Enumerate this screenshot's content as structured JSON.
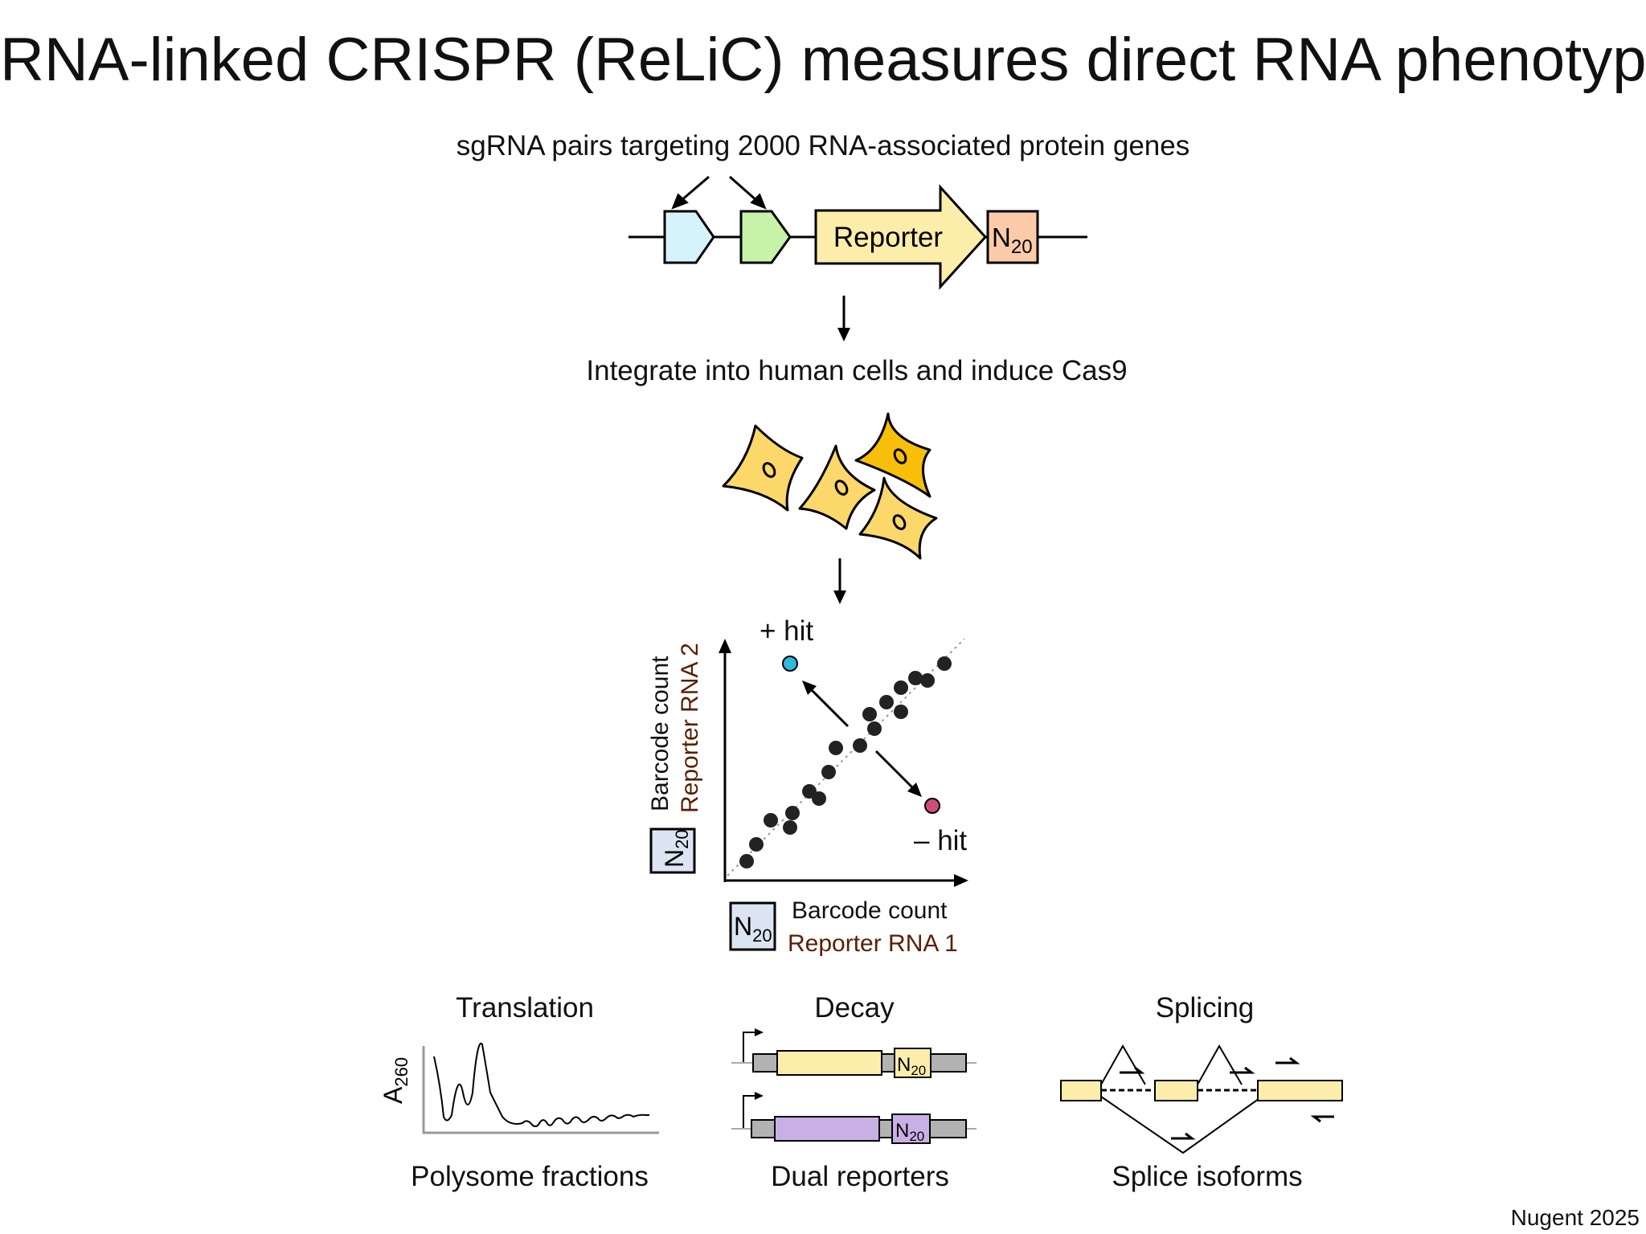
{
  "title": "RNA-linked CRISPR (ReLiC) measures direct RNA phenotypes",
  "steps": {
    "library": "sgRNA pairs targeting 2000 RNA-associated protein genes",
    "integrate": "Integrate into human cells and induce Cas9"
  },
  "construct": {
    "reporter_label": "Reporter",
    "barcode": "N",
    "barcode_sub": "20",
    "colors": {
      "sgrna1": "#d6f2fb",
      "sgrna2": "#c7f3a8",
      "reporter": "#fdedaa",
      "barcode": "#fbcba9"
    }
  },
  "scatter": {
    "plus_hit": "+ hit",
    "minus_hit": "– hit",
    "x_label": "Barcode count",
    "x_sub": "Reporter RNA 1",
    "y_label": "Barcode count",
    "y_sub": "Reporter RNA 2",
    "barcode": "N",
    "barcode_sub": "20",
    "colors": {
      "plus": "#2fb8e0",
      "minus": "#cc4f7b",
      "dot": "#222222",
      "barcode_box": "#dbe5f2"
    }
  },
  "chart_data": {
    "type": "scatter",
    "title": "",
    "xlabel": "Barcode count Reporter RNA 1",
    "ylabel": "Barcode count Reporter RNA 2",
    "series": [
      {
        "values": [
          [
            0.09,
            0.08
          ],
          [
            0.13,
            0.15
          ],
          [
            0.19,
            0.25
          ],
          [
            0.27,
            0.22
          ],
          [
            0.28,
            0.28
          ],
          [
            0.35,
            0.37
          ],
          [
            0.39,
            0.34
          ],
          [
            0.43,
            0.45
          ],
          [
            0.46,
            0.55
          ],
          [
            0.56,
            0.56
          ],
          [
            0.62,
            0.63
          ],
          [
            0.6,
            0.69
          ],
          [
            0.67,
            0.74
          ],
          [
            0.73,
            0.7
          ],
          [
            0.73,
            0.8
          ],
          [
            0.79,
            0.84
          ],
          [
            0.84,
            0.83
          ],
          [
            0.91,
            0.9
          ]
        ]
      },
      {
        "name": "+ hit",
        "values": [
          [
            0.27,
            0.9
          ]
        ]
      },
      {
        "name": "– hit",
        "values": [
          [
            0.86,
            0.31
          ]
        ]
      }
    ]
  },
  "panels": [
    {
      "title": "Translation",
      "caption": "Polysome fractions",
      "axis": "A",
      "axis_sub": "260"
    },
    {
      "title": "Decay",
      "caption": "Dual reporters",
      "barcode": "N",
      "barcode_sub": "20"
    },
    {
      "title": "Splicing",
      "caption": "Splice isoforms"
    }
  ],
  "credit": "Nugent 2025"
}
